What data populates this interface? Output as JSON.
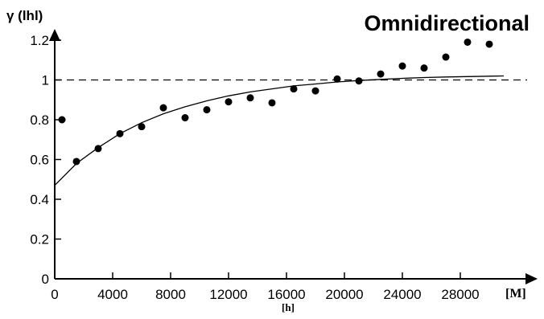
{
  "chart_data": {
    "type": "scatter",
    "title": "Omnidirectional",
    "ylabel": "γ (lhl)",
    "xlabel": "[h]",
    "xunit": "[M]",
    "xlim": [
      0,
      31000
    ],
    "ylim": [
      0,
      1.2
    ],
    "xticks": [
      0,
      4000,
      8000,
      12000,
      16000,
      20000,
      24000,
      28000
    ],
    "yticks": [
      0,
      0.2,
      0.4,
      0.6,
      0.8,
      1,
      1.2
    ],
    "ytick_labels": [
      "0",
      "0.2",
      "0.4",
      "0.6",
      "0.8",
      "1",
      "1.2"
    ],
    "reference_line": {
      "y": 1,
      "style": "dashed"
    },
    "series": [
      {
        "type": "scatter",
        "x": [
          500,
          1500,
          3000,
          4500,
          6000,
          7500,
          9000,
          10500,
          12000,
          13500,
          15000,
          16500,
          18000,
          19500,
          21000,
          22500,
          24000,
          25500,
          27000,
          28500,
          30000
        ],
        "y": [
          0.8,
          0.59,
          0.655,
          0.73,
          0.765,
          0.86,
          0.81,
          0.85,
          0.89,
          0.91,
          0.885,
          0.955,
          0.945,
          1.005,
          0.995,
          1.03,
          1.07,
          1.06,
          1.115,
          1.19,
          1.18
        ]
      },
      {
        "type": "line",
        "model": "exponential fit",
        "x": [
          0,
          1500,
          3000,
          4500,
          6000,
          7500,
          9000,
          10500,
          12000,
          13500,
          15000,
          16500,
          18000,
          19500,
          21000,
          22500,
          24000,
          25500,
          27000,
          28500,
          30000,
          31000
        ],
        "y": [
          0.47,
          0.58,
          0.66,
          0.73,
          0.785,
          0.83,
          0.865,
          0.895,
          0.92,
          0.94,
          0.955,
          0.97,
          0.98,
          0.99,
          0.997,
          1.003,
          1.008,
          1.012,
          1.015,
          1.017,
          1.019,
          1.02
        ]
      }
    ]
  }
}
